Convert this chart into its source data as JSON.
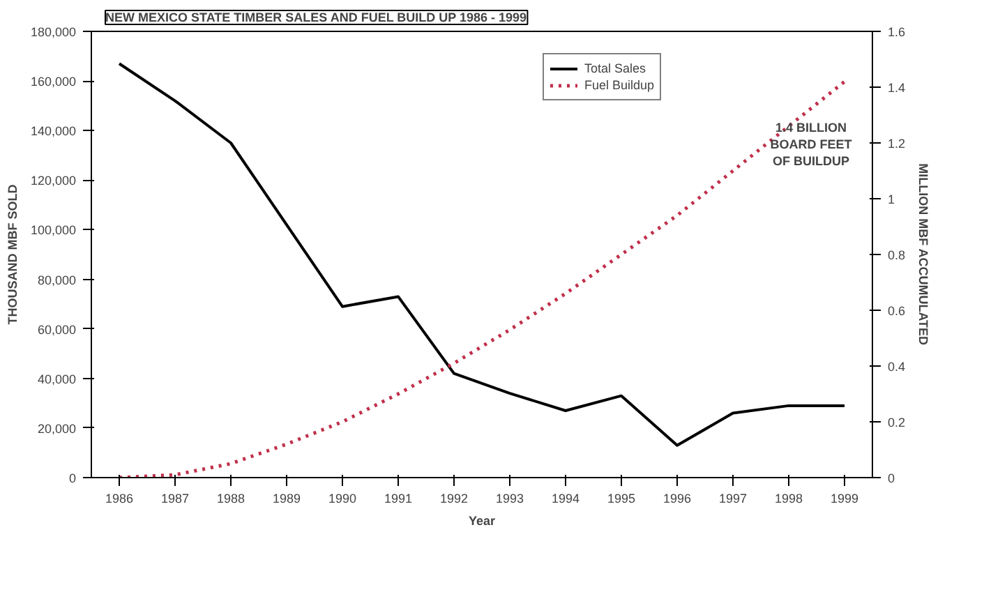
{
  "chart_data": {
    "type": "line",
    "title": "NEW MEXICO STATE TIMBER SALES AND FUEL BUILD UP 1986 - 1999",
    "xlabel": "Year",
    "ylabel": "THOUSAND MBF SOLD",
    "y2label": "MILLION MBF ACCUMULATED",
    "categories": [
      "1986",
      "1987",
      "1988",
      "1989",
      "1990",
      "1991",
      "1992",
      "1993",
      "1994",
      "1995",
      "1996",
      "1997",
      "1998",
      "1999"
    ],
    "series": [
      {
        "name": "Total Sales",
        "color": "#000000",
        "line_style": "solid",
        "values": [
          167000,
          152000,
          135000,
          102000,
          69000,
          73000,
          42000,
          34000,
          27000,
          33000,
          13000,
          26000,
          29000,
          29000
        ]
      },
      {
        "name": "Fuel Buildup",
        "color": "#c0304a",
        "line_style": "dotted",
        "axis": "y2",
        "values": [
          0,
          0.01,
          0.05,
          0.12,
          0.2,
          0.3,
          0.41,
          0.53,
          0.66,
          0.8,
          0.94,
          1.1,
          1.26,
          1.42
        ]
      }
    ],
    "ylim": [
      0,
      180000
    ],
    "yticks": [
      0,
      {
        "value": 20000,
        "label": "20,000"
      },
      {
        "value": 40000,
        "label": "40,000"
      },
      {
        "value": 60000,
        "label": "60,000"
      },
      {
        "value": 80000,
        "label": "80,000"
      },
      {
        "value": 100000,
        "label": "100,000"
      },
      {
        "value": 120000,
        "label": "120,000"
      },
      {
        "value": 140000,
        "label": "140,000"
      },
      {
        "value": 160000,
        "label": "160,000"
      },
      {
        "value": 180000,
        "label": "180,000"
      }
    ],
    "y2lim": [
      0,
      1.6
    ],
    "y2ticks": [
      0,
      0.2,
      0.4,
      0.6,
      0.8,
      1,
      1.2,
      1.4,
      1.6
    ],
    "annotations": [
      "1.4 BILLION BOARD FEET OF BUILDUP"
    ],
    "legend": "top right",
    "grid": false,
    "marker": "none"
  }
}
